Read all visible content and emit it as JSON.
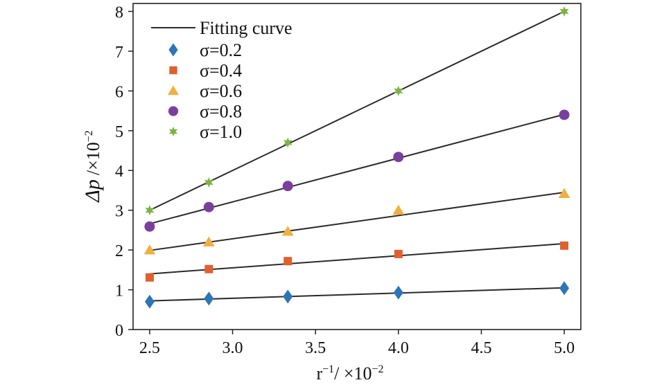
{
  "chart_data": {
    "type": "scatter",
    "title": "",
    "xlabel": {
      "main": "r",
      "sup": "−1",
      "suffix": "/ ×10",
      "suffix_sup": "−2"
    },
    "ylabel": {
      "main": "Δp",
      "suffix": "/×10",
      "suffix_sup": "−2"
    },
    "xlim": [
      2.4,
      5.1
    ],
    "ylim": [
      0,
      8.2
    ],
    "xticks": [
      2.5,
      3.0,
      3.5,
      4.0,
      4.5,
      5.0
    ],
    "xtick_labels": [
      "2.5",
      "3.0",
      "3.5",
      "4.0",
      "4.5",
      "5.0"
    ],
    "yticks": [
      0,
      1,
      2,
      3,
      4,
      5,
      6,
      7,
      8
    ],
    "ytick_labels": [
      "0",
      "1",
      "2",
      "3",
      "4",
      "5",
      "6",
      "7",
      "8"
    ],
    "grid": false,
    "legend_position": "top-left",
    "fit_label": "Fitting curve",
    "x": [
      2.5,
      2.857,
      3.333,
      4.0,
      5.0
    ],
    "series": [
      {
        "name": "σ=0.2",
        "sigma": "0.2",
        "marker": "diamond",
        "color": "#2e75b6",
        "values": [
          0.7,
          0.78,
          0.83,
          0.93,
          1.04
        ],
        "fit": [
          0.72,
          1.05
        ]
      },
      {
        "name": "σ=0.4",
        "sigma": "0.4",
        "marker": "square",
        "color": "#e0602e",
        "values": [
          1.31,
          1.52,
          1.72,
          1.9,
          2.11
        ],
        "fit": [
          1.4,
          2.16
        ]
      },
      {
        "name": "σ=0.6",
        "sigma": "0.6",
        "marker": "triangle",
        "color": "#f0b040",
        "values": [
          2.0,
          2.2,
          2.47,
          3.0,
          3.42
        ],
        "fit": [
          1.99,
          3.45
        ]
      },
      {
        "name": "σ=0.8",
        "sigma": "0.8",
        "marker": "circle",
        "color": "#7a3f9d",
        "values": [
          2.59,
          3.08,
          3.61,
          4.34,
          5.4
        ],
        "fit": [
          2.66,
          5.41
        ]
      },
      {
        "name": "σ=1.0",
        "sigma": "1.0",
        "marker": "star",
        "color": "#7cb342",
        "values": [
          3.0,
          3.7,
          4.7,
          6.0,
          8.0
        ],
        "fit": [
          3.0,
          8.0
        ]
      }
    ]
  }
}
